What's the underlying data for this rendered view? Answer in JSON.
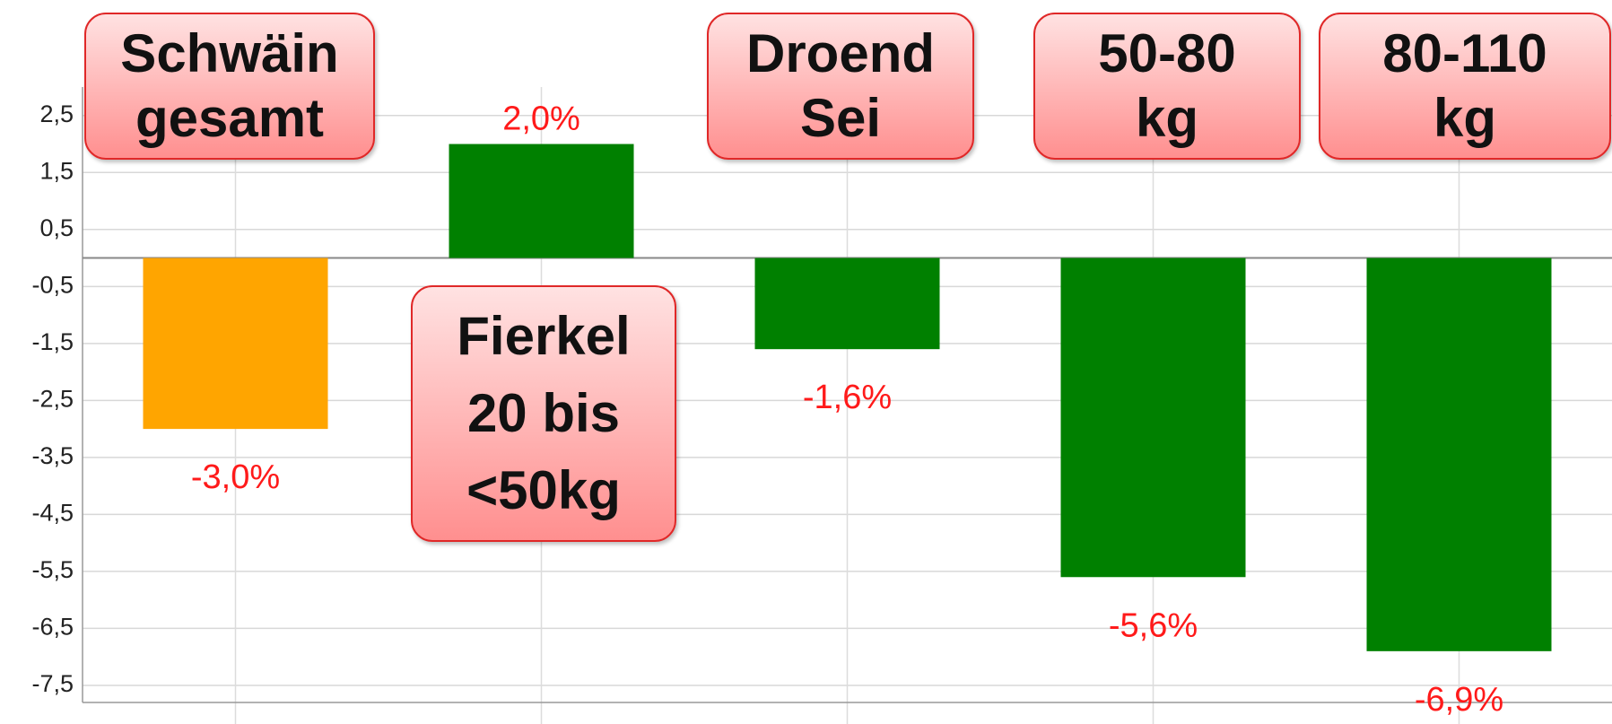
{
  "chart_data": {
    "type": "bar",
    "categories": [
      "Schwäin\ngesamt",
      "Fierkel\n20 bis\n<50kg",
      "Droend\nSei",
      "50-80\nkg",
      "80-110\nkg"
    ],
    "values": [
      -3.0,
      2.0,
      -1.6,
      -5.6,
      -6.9
    ],
    "value_labels": [
      "-3,0%",
      "2,0%",
      "-1,6%",
      "-5,6%",
      "-6,9%"
    ],
    "colors": [
      "#ffa500",
      "#008000",
      "#008000",
      "#008000",
      "#008000"
    ],
    "ylim": [
      -7.8,
      3.0
    ],
    "yticks": [
      {
        "value": 2.5,
        "label": "2,5"
      },
      {
        "value": 1.5,
        "label": "1,5"
      },
      {
        "value": 0.5,
        "label": "0,5"
      },
      {
        "value": -0.5,
        "label": "-0,5"
      },
      {
        "value": -1.5,
        "label": "-1,5"
      },
      {
        "value": -2.5,
        "label": "-2,5"
      },
      {
        "value": -3.5,
        "label": "-3,5"
      },
      {
        "value": -4.5,
        "label": "-4,5"
      },
      {
        "value": -5.5,
        "label": "-5,5"
      },
      {
        "value": -6.5,
        "label": "-6,5"
      },
      {
        "value": -7.5,
        "label": "-7,5"
      }
    ],
    "grid": true
  }
}
